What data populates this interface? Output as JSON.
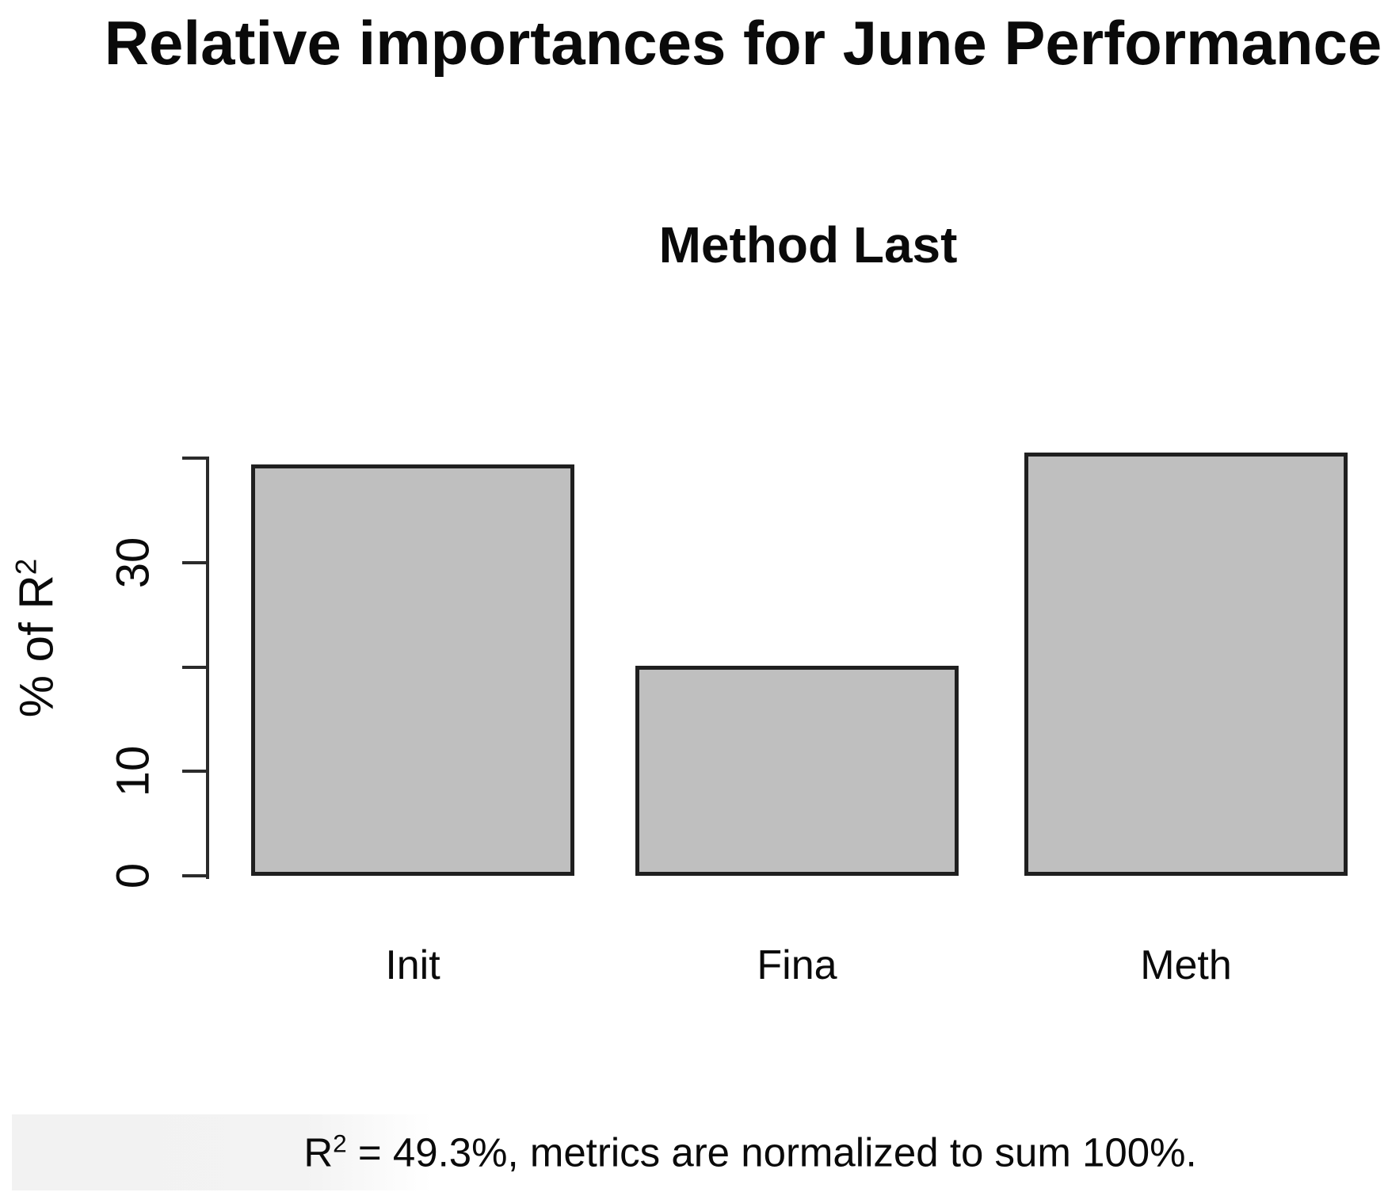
{
  "chart_data": {
    "type": "bar",
    "title": "Relative importances for June Performance",
    "subtitle": "Method Last",
    "categories": [
      "Init",
      "Fina",
      "Meth"
    ],
    "values": [
      39.4,
      20.1,
      40.5
    ],
    "xlabel": "",
    "ylabel": "% of R²",
    "ylabel_parts": {
      "base": "% of R",
      "sup": "2"
    },
    "ylim": [
      0,
      40
    ],
    "y_ticks": [
      0,
      10,
      20,
      30,
      40
    ],
    "y_tick_labels_shown": [
      "0",
      "10",
      "30"
    ],
    "grid": false,
    "legend": false,
    "bar_fill": "#bfbfbf",
    "bar_border": "#1f1f1f",
    "axis_color": "#2b2b2b",
    "caption": "R² = 49.3%, metrics are normalized to sum 100%.",
    "caption_parts": {
      "base": "R",
      "sup": "2",
      "rest": " = 49.3%, metrics are normalized to sum 100%."
    }
  }
}
